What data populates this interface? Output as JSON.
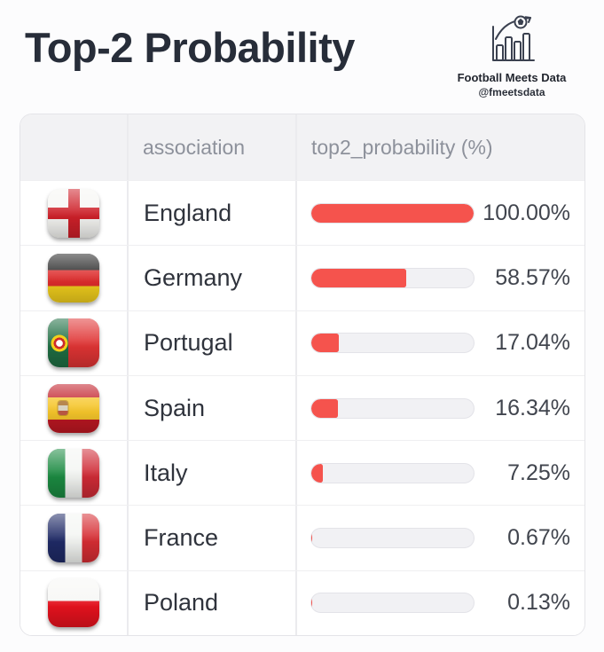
{
  "page": {
    "title": "Top-2 Probability",
    "brand": {
      "name": "Football Meets Data",
      "handle": "@fmeetsdata"
    }
  },
  "table": {
    "header": {
      "association": "association",
      "probability": "top2_probability (%)"
    },
    "rows": [
      {
        "association": "England",
        "value": 100.0,
        "value_label": "100.00%",
        "flag": "england-flag-icon"
      },
      {
        "association": "Germany",
        "value": 58.57,
        "value_label": "58.57%",
        "flag": "germany-flag-icon"
      },
      {
        "association": "Portugal",
        "value": 17.04,
        "value_label": "17.04%",
        "flag": "portugal-flag-icon"
      },
      {
        "association": "Spain",
        "value": 16.34,
        "value_label": "16.34%",
        "flag": "spain-flag-icon"
      },
      {
        "association": "Italy",
        "value": 7.25,
        "value_label": "7.25%",
        "flag": "italy-flag-icon"
      },
      {
        "association": "France",
        "value": 0.67,
        "value_label": "0.67%",
        "flag": "france-flag-icon"
      },
      {
        "association": "Poland",
        "value": 0.13,
        "value_label": "0.13%",
        "flag": "poland-flag-icon"
      }
    ]
  },
  "colors": {
    "bar_fill": "#f5534d",
    "bar_track": "#f1f1f4",
    "header_bg": "#f2f2f4",
    "title_text": "#272d39",
    "header_text": "#8d919b"
  },
  "chart_data": {
    "type": "bar",
    "orientation": "horizontal",
    "title": "Top-2 Probability",
    "categories": [
      "England",
      "Germany",
      "Portugal",
      "Spain",
      "Italy",
      "France",
      "Poland"
    ],
    "values": [
      100.0,
      58.57,
      17.04,
      16.34,
      7.25,
      0.67,
      0.13
    ],
    "value_labels": [
      "100.00%",
      "58.57%",
      "17.04%",
      "16.34%",
      "7.25%",
      "0.67%",
      "0.13%"
    ],
    "xlabel": "top2_probability (%)",
    "ylabel": "association",
    "xlim": [
      0,
      100
    ],
    "bar_color": "#f5534d",
    "track_color": "#f1f1f4",
    "grid": false,
    "legend": false
  }
}
